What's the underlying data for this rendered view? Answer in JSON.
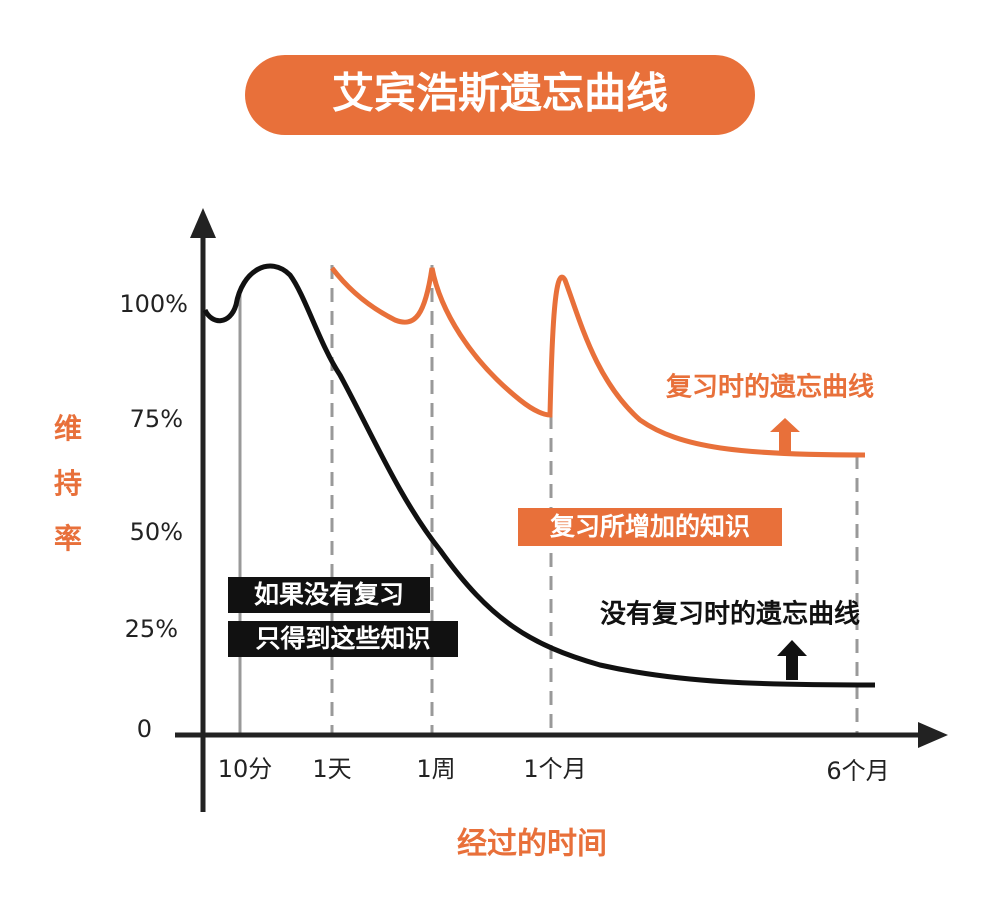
{
  "title": "艾宾浩斯遗忘曲线",
  "y_axis": {
    "label": [
      "维",
      "持",
      "率"
    ],
    "ticks": [
      "100%",
      "75%",
      "50%",
      "25%",
      "0"
    ]
  },
  "x_axis": {
    "label": "经过的时间",
    "ticks": [
      "10分",
      "1天",
      "1周",
      "1个月",
      "6个月"
    ]
  },
  "annotations": {
    "review_curve": "复习时的遗忘曲线",
    "gain": "复习所增加的知识",
    "no_review_curve": "没有复习时的遗忘曲线",
    "box_line1": "如果没有复习",
    "box_line2": "只得到这些知识"
  }
}
